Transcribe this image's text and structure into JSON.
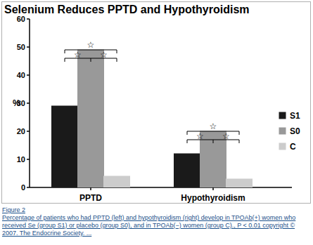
{
  "chart_data": {
    "type": "bar",
    "title": "Selenium Reduces PPTD and Hypothyroidism",
    "ylabel": "%",
    "categories": [
      "PPTD",
      "Hypothyroidism"
    ],
    "series": [
      {
        "name": "S1",
        "color": "#1a1a1a",
        "values": [
          29,
          12
        ]
      },
      {
        "name": "S0",
        "color": "#999999",
        "values": [
          49,
          20
        ]
      },
      {
        "name": "C",
        "color": "#cccccc",
        "values": [
          4,
          3
        ]
      }
    ],
    "ylim": [
      0,
      60
    ],
    "yticks": [
      0,
      10,
      20,
      30,
      40,
      50,
      60
    ],
    "grid": false,
    "legend": "right",
    "annotations": [
      "☆",
      "☆",
      "☆",
      "☆",
      "☆",
      "☆",
      "Figure 2",
      "Percentage of patients who had PPTD (left) and hypothyroidism (right) develop in TPOAb(+) women who received Se (group S1) or placebo (group S0), and in TPOAb(−) women (group C)., P < 0.01 copyright © 2007. The Endocrine Society. ..."
    ]
  }
}
